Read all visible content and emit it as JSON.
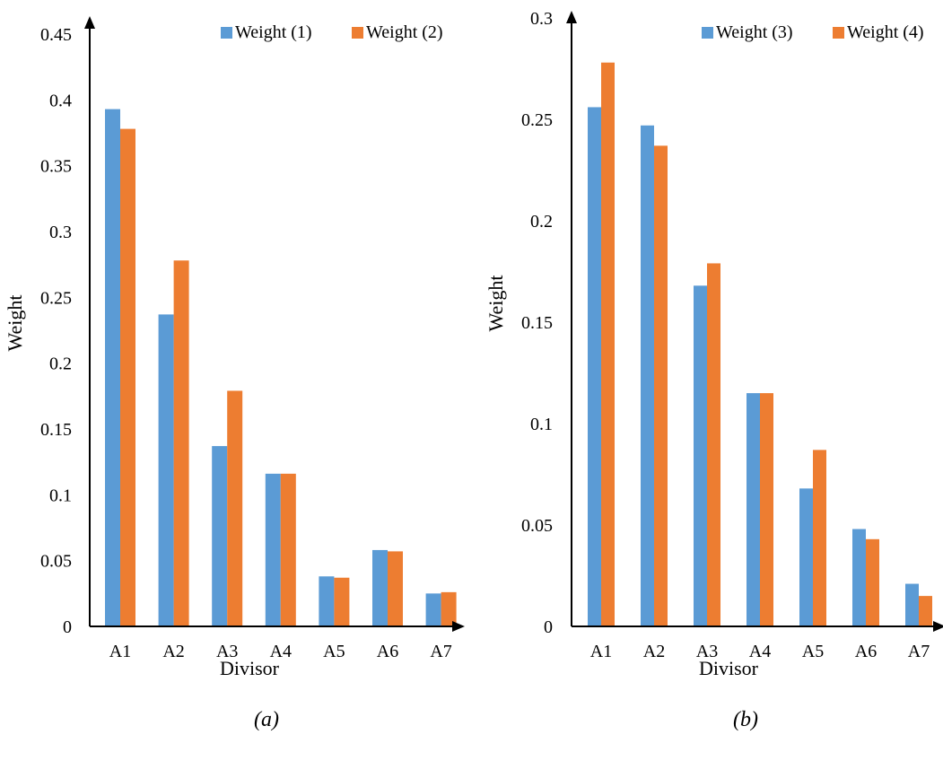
{
  "chart_data": [
    {
      "type": "bar",
      "caption": "(a)",
      "xlabel": "Divisor",
      "ylabel": "Weight",
      "ylim": [
        0,
        0.45
      ],
      "yticks": [
        "0",
        "0.05",
        "0.1",
        "0.15",
        "0.2",
        "0.25",
        "0.3",
        "0.35",
        "0.4",
        "0.45"
      ],
      "categories": [
        "A1",
        "A2",
        "A3",
        "A4",
        "A5",
        "A6",
        "A7"
      ],
      "legend_position": "top-right",
      "series": [
        {
          "name": "Weight (1)",
          "color": "#5b9bd5",
          "values": [
            0.393,
            0.237,
            0.137,
            0.116,
            0.038,
            0.058,
            0.025
          ]
        },
        {
          "name": "Weight (2)",
          "color": "#ed7d31",
          "values": [
            0.378,
            0.278,
            0.179,
            0.116,
            0.037,
            0.057,
            0.026
          ]
        }
      ]
    },
    {
      "type": "bar",
      "caption": "(b)",
      "xlabel": "Divisor",
      "ylabel": "Weight",
      "ylim": [
        0,
        0.3
      ],
      "yticks": [
        "0",
        "0.05",
        "0.1",
        "0.15",
        "0.2",
        "0.25",
        "0.3"
      ],
      "categories": [
        "A1",
        "A2",
        "A3",
        "A4",
        "A5",
        "A6",
        "A7"
      ],
      "legend_position": "top-right",
      "series": [
        {
          "name": "Weight (3)",
          "color": "#5b9bd5",
          "values": [
            0.256,
            0.247,
            0.168,
            0.115,
            0.068,
            0.048,
            0.021
          ]
        },
        {
          "name": "Weight (4)",
          "color": "#ed7d31",
          "values": [
            0.278,
            0.237,
            0.179,
            0.115,
            0.087,
            0.043,
            0.015
          ]
        }
      ]
    }
  ]
}
